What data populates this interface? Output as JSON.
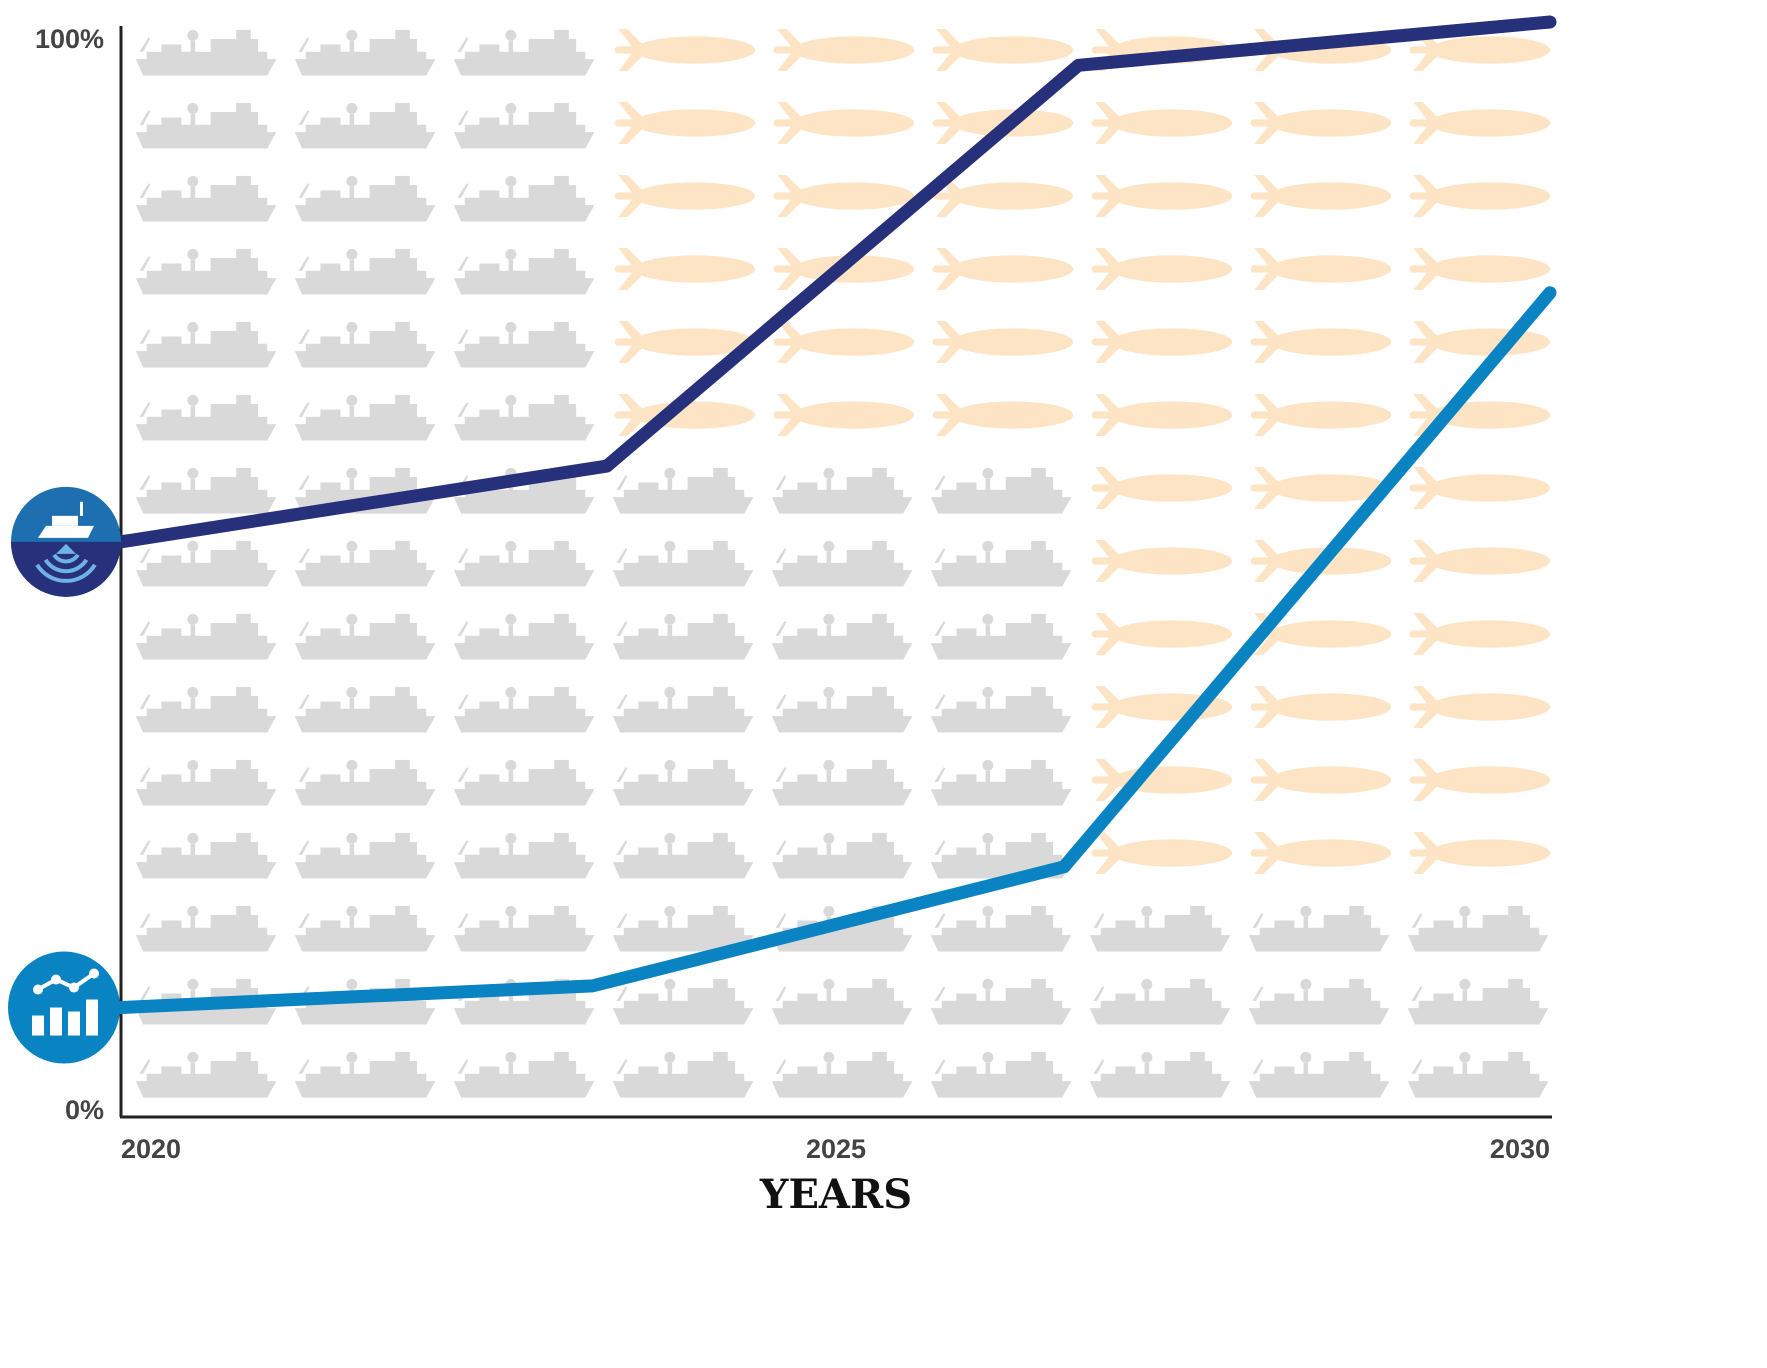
{
  "chart_data": {
    "type": "line",
    "xlabel": "YEARS",
    "ylabel": "",
    "x_ticks": [
      "2020",
      "2025",
      "2030"
    ],
    "y_ticks": [
      "0%",
      "100%"
    ],
    "xlim": [
      2020,
      2030
    ],
    "ylim": [
      0,
      100
    ],
    "series": [
      {
        "icon": "ship-sonar-icon",
        "color": "#27307a",
        "x": [
          2020,
          2023.4,
          2026.7,
          2030
        ],
        "y": [
          52,
          59,
          96,
          100
        ]
      },
      {
        "icon": "bar-chart-trend-icon",
        "color": "#0a83c2",
        "x": [
          2020,
          2023.3,
          2026.6,
          2030
        ],
        "y": [
          9,
          11,
          22,
          75
        ]
      }
    ],
    "background": {
      "columns": 9,
      "rows": 15,
      "vessel_icon": "survey-ship-icon",
      "vessel_color": "#d9d9d9",
      "auv_icon": "autonomous-underwater-vehicle-icon",
      "auv_color": "#fde4c4",
      "auv_rows_per_column": [
        0,
        0,
        0,
        6,
        6,
        6,
        12,
        12,
        12
      ]
    }
  }
}
